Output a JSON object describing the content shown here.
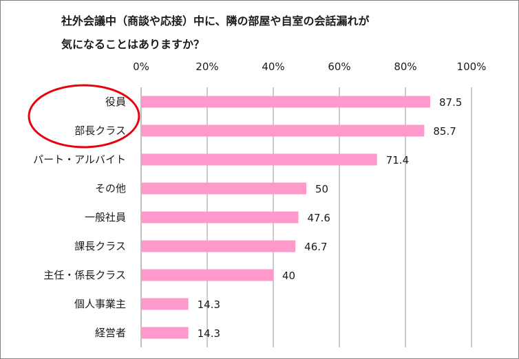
{
  "title_lines": [
    "社外会議中（商談や応接）中に、隣の部屋や自室の会話漏れが",
    "気になることはありますか？"
  ],
  "colors": {
    "bar": "#ff99cc",
    "highlight_ellipse": "#e8000d",
    "grid": "#999999",
    "axis_line": "#7f7f7f",
    "text": "#1a1a1a"
  },
  "chart_data": {
    "type": "bar",
    "orientation": "horizontal",
    "title": "社外会議中（商談や応接）中に、隣の部屋や自室の会話漏れが気になることはありますか？",
    "xlabel": "",
    "ylabel": "",
    "xlim": [
      0,
      100
    ],
    "x_tick_labels": [
      "0%",
      "20%",
      "40%",
      "60%",
      "80%",
      "100%"
    ],
    "grid": true,
    "legend": "none",
    "categories": [
      "役員",
      "部長クラス",
      "パート・アルバイト",
      "その他",
      "一般社員",
      "課長クラス",
      "主任・係長クラス",
      "個人事業主",
      "経営者"
    ],
    "values": [
      87.5,
      85.7,
      71.4,
      50,
      47.6,
      46.7,
      40,
      14.3,
      14.3
    ],
    "value_labels": [
      "87.5",
      "85.7",
      "71.4",
      "50",
      "47.6",
      "46.7",
      "40",
      "14.3",
      "14.3"
    ],
    "highlighted_categories": [
      "役員",
      "部長クラス"
    ]
  }
}
